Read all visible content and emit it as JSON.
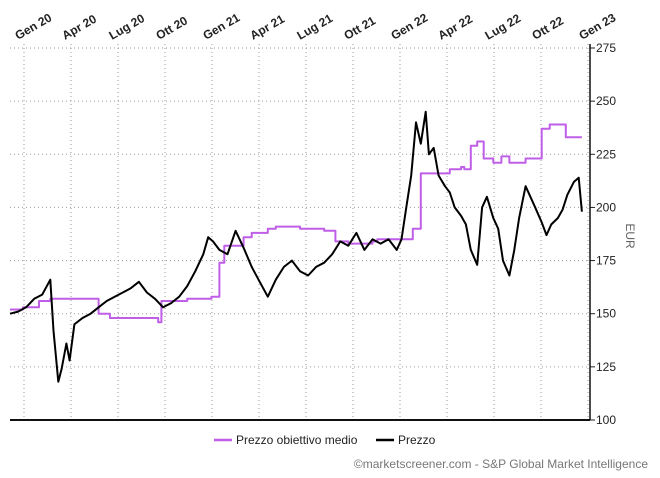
{
  "chart_data": {
    "type": "line",
    "x_tick_labels": [
      "Gen 20",
      "Apr 20",
      "Lug 20",
      "Ott 20",
      "Gen 21",
      "Apr 21",
      "Lug 21",
      "Ott 21",
      "Gen 22",
      "Apr 22",
      "Lug 22",
      "Ott 22",
      "Gen 23"
    ],
    "y_ticks": [
      100,
      125,
      150,
      175,
      200,
      225,
      250,
      275
    ],
    "ylabel": "EUR",
    "ylim": [
      100,
      275
    ],
    "x_range_months": [
      0,
      36
    ],
    "grid": true,
    "legend_position": "bottom-center",
    "series": [
      {
        "name": "Prezzo obiettivo medio",
        "color": "#bf5fe8",
        "x": [
          0,
          0.8,
          1.8,
          2.5,
          4,
          5.5,
          6.2,
          8,
          9.2,
          9.4,
          11,
          12.5,
          13,
          13.3,
          14.5,
          15,
          16,
          16.5,
          17,
          18,
          19.5,
          20.2,
          21,
          22.5,
          22.8,
          23.2,
          23.5,
          25,
          25.5,
          26,
          27.3,
          28,
          28.2,
          28.6,
          29,
          29.4,
          30,
          30.5,
          31,
          32,
          33,
          33.5,
          34.5,
          35.5
        ],
        "values": [
          152,
          153,
          156,
          157,
          157,
          150,
          148,
          148,
          146,
          156,
          157,
          158,
          174,
          182,
          186,
          188,
          190,
          191,
          191,
          190,
          189,
          184,
          183,
          184,
          185,
          185,
          185,
          190,
          216,
          216,
          218,
          219,
          218,
          229,
          231,
          223,
          221,
          224,
          221,
          223,
          237,
          239,
          233,
          233
        ]
      },
      {
        "name": "Prezzo",
        "color": "#000000",
        "x": [
          0,
          0.5,
          1,
          1.5,
          2,
          2.5,
          2.7,
          3,
          3.2,
          3.5,
          3.7,
          4,
          4.5,
          5,
          5.5,
          6,
          6.5,
          7,
          7.5,
          8,
          8.5,
          9,
          9.5,
          10,
          10.5,
          11,
          11.5,
          12,
          12.3,
          12.6,
          13,
          13.5,
          14,
          14.5,
          15,
          15.5,
          16,
          16.5,
          17,
          17.5,
          18,
          18.5,
          19,
          19.5,
          20,
          20.5,
          21,
          21.5,
          22,
          22.5,
          23,
          23.5,
          24,
          24.3,
          24.6,
          24.9,
          25.2,
          25.5,
          25.8,
          26,
          26.3,
          26.6,
          27,
          27.3,
          27.6,
          28,
          28.3,
          28.6,
          29,
          29.3,
          29.6,
          30,
          30.3,
          30.6,
          31,
          31.3,
          31.6,
          32,
          32.3,
          32.6,
          33,
          33.3,
          33.6,
          34,
          34.3,
          34.6,
          35,
          35.3,
          35.5
        ],
        "values": [
          150,
          151,
          153,
          157,
          159,
          166,
          142,
          118,
          124,
          136,
          128,
          145,
          148,
          150,
          153,
          156,
          158,
          160,
          162,
          165,
          160,
          157,
          153,
          155,
          158,
          163,
          170,
          178,
          186,
          184,
          180,
          178,
          189,
          181,
          172,
          165,
          158,
          166,
          172,
          175,
          170,
          168,
          172,
          174,
          178,
          184,
          182,
          188,
          180,
          185,
          183,
          185,
          180,
          185,
          200,
          215,
          240,
          230,
          245,
          225,
          228,
          215,
          210,
          207,
          200,
          196,
          192,
          180,
          173,
          200,
          205,
          195,
          190,
          175,
          168,
          180,
          195,
          210,
          205,
          200,
          193,
          187,
          192,
          195,
          199,
          206,
          212,
          214,
          198
        ]
      }
    ]
  },
  "legend": {
    "target_label": "Prezzo obiettivo medio",
    "price_label": "Prezzo"
  },
  "credit": "©marketscreener.com - S&P Global Market Intelligence"
}
